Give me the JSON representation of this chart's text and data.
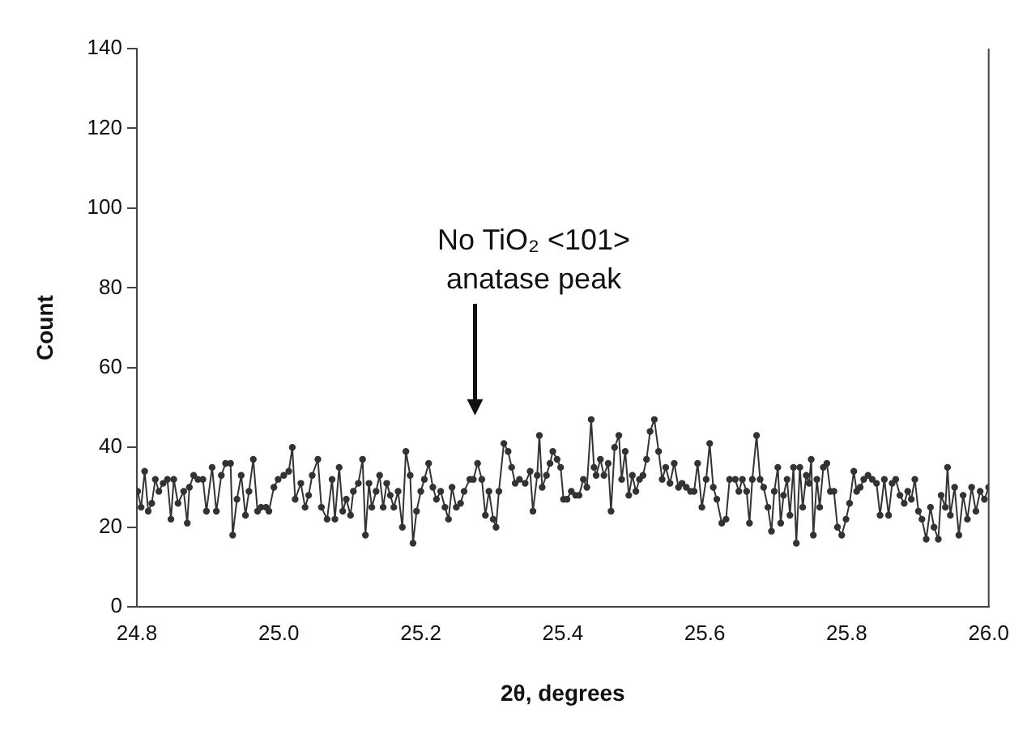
{
  "chart_data": {
    "type": "line",
    "xlabel": "2θ, degrees",
    "ylabel": "Count",
    "marker": "circle",
    "grid": false,
    "legend": false,
    "xlim": [
      24.8,
      26.0
    ],
    "xticks": [
      24.8,
      {
        "value": 25,
        "label": "25.0"
      },
      25.2,
      25.4,
      25.6,
      25.8,
      {
        "value": 26,
        "label": "26.0"
      }
    ],
    "ylim": [
      0,
      140
    ],
    "yticks": [
      0,
      20,
      40,
      60,
      80,
      100,
      120,
      140
    ],
    "annotations": [
      "No TiO₂ <101> anatase peak"
    ],
    "series": [
      {
        "color": "#333333",
        "x": [
          24.801,
          24.806,
          24.811,
          24.816,
          24.821,
          24.826,
          24.831,
          24.837,
          24.843,
          24.848,
          24.852,
          24.858,
          24.866,
          24.871,
          24.874,
          24.88,
          24.886,
          24.893,
          24.898,
          24.906,
          24.912,
          24.919,
          24.925,
          24.932,
          24.935,
          24.941,
          24.947,
          24.953,
          24.958,
          24.964,
          24.97,
          24.975,
          24.982,
          24.986,
          24.993,
          24.999,
          25.007,
          25.014,
          25.019,
          25.023,
          25.031,
          25.037,
          25.042,
          25.047,
          25.055,
          25.06,
          25.068,
          25.075,
          25.079,
          25.085,
          25.09,
          25.095,
          25.101,
          25.105,
          25.112,
          25.118,
          25.122,
          25.127,
          25.131,
          25.137,
          25.142,
          25.147,
          25.152,
          25.157,
          25.162,
          25.168,
          25.174,
          25.179,
          25.185,
          25.189,
          25.194,
          25.2,
          25.205,
          25.211,
          25.217,
          25.222,
          25.228,
          25.234,
          25.239,
          25.244,
          25.25,
          25.256,
          25.261,
          25.269,
          25.274,
          25.28,
          25.286,
          25.291,
          25.296,
          25.302,
          25.306,
          25.31,
          25.317,
          25.323,
          25.328,
          25.333,
          25.339,
          25.347,
          25.354,
          25.358,
          25.364,
          25.367,
          25.371,
          25.377,
          25.382,
          25.386,
          25.392,
          25.397,
          25.401,
          25.406,
          25.412,
          25.418,
          25.423,
          25.429,
          25.434,
          25.44,
          25.444,
          25.447,
          25.453,
          25.458,
          25.464,
          25.468,
          25.473,
          25.479,
          25.483,
          25.488,
          25.493,
          25.498,
          25.503,
          25.508,
          25.513,
          25.518,
          25.523,
          25.529,
          25.535,
          25.54,
          25.545,
          25.551,
          25.557,
          25.563,
          25.568,
          25.574,
          25.58,
          25.585,
          25.59,
          25.596,
          25.602,
          25.607,
          25.612,
          25.617,
          25.624,
          25.63,
          25.635,
          25.643,
          25.648,
          25.653,
          25.659,
          25.663,
          25.667,
          25.673,
          25.678,
          25.683,
          25.689,
          25.694,
          25.698,
          25.703,
          25.707,
          25.711,
          25.716,
          25.72,
          25.725,
          25.729,
          25.734,
          25.738,
          25.743,
          25.747,
          25.75,
          25.753,
          25.758,
          25.762,
          25.767,
          25.772,
          25.777,
          25.782,
          25.787,
          25.793,
          25.799,
          25.804,
          25.81,
          25.814,
          25.819,
          25.824,
          25.83,
          25.836,
          25.842,
          25.847,
          25.853,
          25.859,
          25.864,
          25.869,
          25.875,
          25.881,
          25.886,
          25.891,
          25.896,
          25.901,
          25.906,
          25.912,
          25.918,
          25.923,
          25.929,
          25.933,
          25.939,
          25.942,
          25.946,
          25.952,
          25.958,
          25.964,
          25.97,
          25.976,
          25.982,
          25.988,
          25.994,
          26.0
        ],
        "values": [
          29,
          25,
          34,
          24,
          26,
          32,
          29,
          31,
          32,
          22,
          32,
          26,
          29,
          21,
          30,
          33,
          32,
          32,
          24,
          35,
          24,
          33,
          36,
          36,
          18,
          27,
          33,
          23,
          29,
          37,
          24,
          25,
          25,
          24,
          30,
          32,
          33,
          34,
          40,
          27,
          31,
          25,
          28,
          33,
          37,
          25,
          22,
          32,
          22,
          35,
          24,
          27,
          23,
          29,
          31,
          37,
          18,
          31,
          25,
          29,
          33,
          25,
          31,
          28,
          25,
          29,
          20,
          39,
          33,
          16,
          24,
          29,
          32,
          36,
          30,
          27,
          29,
          25,
          22,
          30,
          25,
          26,
          29,
          32,
          32,
          36,
          32,
          23,
          29,
          22,
          20,
          29,
          41,
          39,
          35,
          31,
          32,
          31,
          34,
          24,
          33,
          43,
          30,
          33,
          36,
          39,
          37,
          35,
          27,
          27,
          29,
          28,
          28,
          32,
          30,
          47,
          35,
          33,
          37,
          33,
          36,
          24,
          40,
          43,
          32,
          39,
          28,
          33,
          29,
          32,
          33,
          37,
          44,
          47,
          39,
          32,
          35,
          31,
          36,
          30,
          31,
          30,
          29,
          29,
          36,
          25,
          32,
          41,
          30,
          27,
          21,
          22,
          32,
          32,
          29,
          32,
          29,
          21,
          32,
          43,
          32,
          30,
          25,
          19,
          29,
          35,
          21,
          28,
          32,
          23,
          35,
          16,
          35,
          25,
          33,
          31,
          37,
          18,
          32,
          25,
          35,
          36,
          29,
          29,
          20,
          18,
          22,
          26,
          34,
          29,
          30,
          32,
          33,
          32,
          31,
          23,
          32,
          23,
          31,
          32,
          28,
          26,
          29,
          27,
          32,
          24,
          22,
          17,
          25,
          20,
          17,
          28,
          25,
          35,
          23,
          30,
          18,
          28,
          22,
          30,
          24,
          29,
          27,
          30
        ]
      }
    ]
  }
}
